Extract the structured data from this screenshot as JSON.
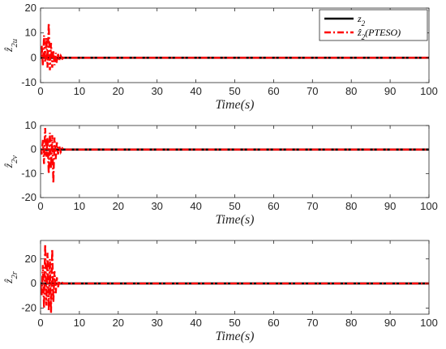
{
  "chart_data": [
    {
      "type": "line",
      "xlabel": "Time(s)",
      "ylabel": "ẑ2u",
      "xlim": [
        0,
        100
      ],
      "ylim": [
        -10,
        20
      ],
      "xticks": [
        "0",
        "10",
        "20",
        "30",
        "40",
        "50",
        "60",
        "70",
        "80",
        "90",
        "100"
      ],
      "yticks": [
        "-10",
        "0",
        "10",
        "20"
      ],
      "grid": false,
      "legend": "top-right",
      "series": [
        {
          "name": "z2",
          "color": "#000000",
          "style": "solid",
          "x": [
            0,
            100
          ],
          "y": [
            0,
            0
          ]
        },
        {
          "name": "ẑ2(PTESO)",
          "color": "#ff0000",
          "style": "dash-dot",
          "x": [
            0,
            0.3,
            0.6,
            0.9,
            1.2,
            1.5,
            1.8,
            2.1,
            2.4,
            2.7,
            3.0,
            3.3,
            3.6,
            3.9,
            4.2,
            4.5,
            4.8,
            5.2,
            5.6,
            6,
            100
          ],
          "y": [
            0,
            5,
            -3,
            9,
            -2,
            8,
            -4,
            14,
            -5,
            6,
            -4,
            3,
            -3,
            2,
            -2,
            1.5,
            -1,
            0.8,
            -0.4,
            0,
            0
          ]
        }
      ]
    },
    {
      "type": "line",
      "xlabel": "Time(s)",
      "ylabel": "ẑ2v",
      "xlim": [
        0,
        100
      ],
      "ylim": [
        -20,
        10
      ],
      "xticks": [
        "0",
        "10",
        "20",
        "30",
        "40",
        "50",
        "60",
        "70",
        "80",
        "90",
        "100"
      ],
      "yticks": [
        "-20",
        "-10",
        "0",
        "10"
      ],
      "grid": false,
      "series": [
        {
          "name": "z2",
          "color": "#000000",
          "style": "solid",
          "x": [
            0,
            100
          ],
          "y": [
            0,
            0
          ]
        },
        {
          "name": "ẑ2(PTESO)",
          "color": "#ff0000",
          "style": "dash-dot",
          "x": [
            0,
            0.3,
            0.6,
            0.9,
            1.2,
            1.5,
            1.8,
            2.1,
            2.4,
            2.7,
            3.0,
            3.3,
            3.6,
            3.9,
            4.2,
            4.5,
            4.8,
            5.2,
            5.6,
            6,
            100
          ],
          "y": [
            0,
            -2,
            4,
            -6,
            9,
            -3,
            5,
            -10,
            7,
            -8,
            6,
            -14,
            5,
            -4,
            3,
            -2,
            1.5,
            -1,
            0.5,
            0,
            0
          ]
        }
      ]
    },
    {
      "type": "line",
      "xlabel": "Time(s)",
      "ylabel": "ẑ2r",
      "xlim": [
        0,
        100
      ],
      "ylim": [
        -25,
        35
      ],
      "xticks": [
        "0",
        "10",
        "20",
        "30",
        "40",
        "50",
        "60",
        "70",
        "80",
        "90",
        "100"
      ],
      "yticks": [
        "-20",
        "0",
        "20"
      ],
      "grid": false,
      "series": [
        {
          "name": "z2",
          "color": "#000000",
          "style": "solid",
          "x": [
            0,
            100
          ],
          "y": [
            0,
            0
          ]
        },
        {
          "name": "ẑ2(PTESO)",
          "color": "#ff0000",
          "style": "dash-dot",
          "x": [
            0,
            0.3,
            0.6,
            0.9,
            1.2,
            1.5,
            1.8,
            2.1,
            2.4,
            2.7,
            3.0,
            3.3,
            3.6,
            3.9,
            4.2,
            4.5,
            4.8,
            5.2,
            5.6,
            6,
            100
          ],
          "y": [
            0,
            -10,
            15,
            -20,
            32,
            -18,
            25,
            -22,
            20,
            -24,
            28,
            -15,
            10,
            -8,
            5,
            -3,
            2,
            -1,
            0.5,
            0,
            0
          ]
        }
      ]
    }
  ]
}
